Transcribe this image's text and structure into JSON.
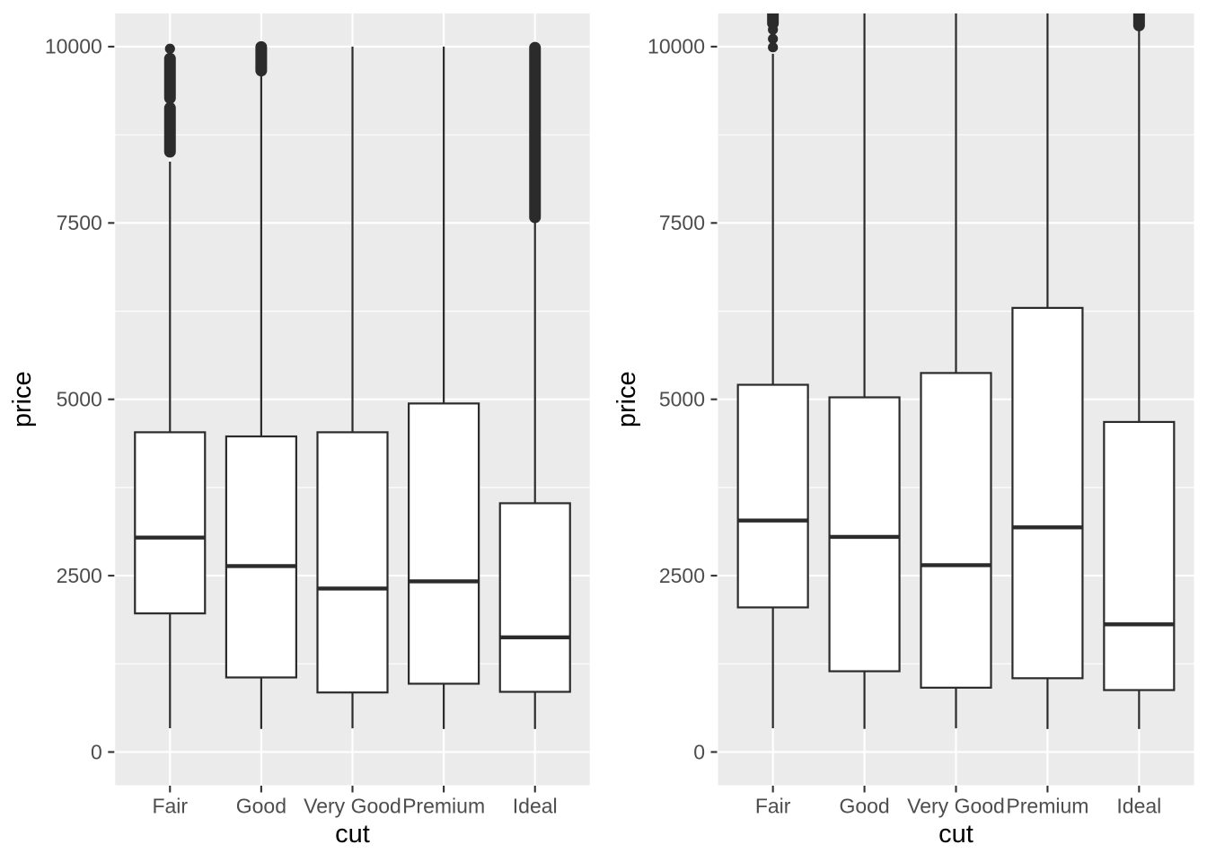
{
  "figure": {
    "kind": "side-by-side ggplot-style boxplots",
    "x_axis_title": "cut",
    "y_axis_title": "price"
  },
  "chart_data": {
    "type": "boxplot",
    "title": "",
    "xlabel": "cut",
    "ylabel": "price",
    "categories": [
      "Fair",
      "Good",
      "Very Good",
      "Premium",
      "Ideal"
    ],
    "y_axis": {
      "breaks": [
        0,
        2500,
        5000,
        7500,
        10000
      ],
      "tick_labels": [
        "0",
        "2500",
        "5000",
        "7500",
        "10000"
      ],
      "minor_breaks": [
        1250,
        3750,
        6250,
        8750
      ],
      "view_range": [
        -471,
        10470
      ]
    },
    "legend": "none",
    "grid": "major+minor white on grey panel",
    "panels": [
      {
        "name": "left-panel",
        "boxes": [
          {
            "category": "Fair",
            "lower": 337,
            "q1": 1965,
            "median": 3040,
            "q3": 4533,
            "upper": 8370,
            "outlier_dots": [
              9970
            ],
            "outlier_blobs": [
              [
                8510,
                9130
              ],
              [
                9270,
                9830
              ]
            ]
          },
          {
            "category": "Good",
            "lower": 327,
            "q1": 1057,
            "median": 2636,
            "q3": 4474,
            "upper": 9597,
            "outlier_dots": [],
            "outlier_blobs": [
              [
                9660,
                9995
              ]
            ]
          },
          {
            "category": "Very Good",
            "lower": 336,
            "q1": 844,
            "median": 2318,
            "q3": 4533,
            "upper": 10000,
            "outlier_dots": [],
            "outlier_blobs": []
          },
          {
            "category": "Premium",
            "lower": 326,
            "q1": 968,
            "median": 2419,
            "q3": 4941,
            "upper": 10000,
            "outlier_dots": [],
            "outlier_blobs": []
          },
          {
            "category": "Ideal",
            "lower": 326,
            "q1": 853,
            "median": 1626,
            "q3": 3527,
            "upper": 7535,
            "outlier_dots": [],
            "outlier_blobs": [
              [
                7580,
                9985
              ]
            ]
          }
        ]
      },
      {
        "name": "right-panel",
        "boxes": [
          {
            "category": "Fair",
            "lower": 337,
            "q1": 2050,
            "median": 3282,
            "q3": 5206,
            "upper": 9899,
            "outlier_dots": [
              9990,
              10110,
              10240
            ],
            "outlier_blobs": [
              [
                10330,
                10620
              ]
            ]
          },
          {
            "category": "Good",
            "lower": 327,
            "q1": 1145,
            "median": 3050,
            "q3": 5028,
            "upper": 10900,
            "outlier_dots": [],
            "outlier_blobs": []
          },
          {
            "category": "Very Good",
            "lower": 336,
            "q1": 912,
            "median": 2648,
            "q3": 5373,
            "upper": 10900,
            "outlier_dots": [],
            "outlier_blobs": []
          },
          {
            "category": "Premium",
            "lower": 326,
            "q1": 1046,
            "median": 3185,
            "q3": 6296,
            "upper": 10900,
            "outlier_dots": [],
            "outlier_blobs": []
          },
          {
            "category": "Ideal",
            "lower": 326,
            "q1": 878,
            "median": 1810,
            "q3": 4679,
            "upper": 10379,
            "outlier_dots": [],
            "outlier_blobs": [
              [
                10300,
                10620
              ]
            ]
          }
        ]
      }
    ],
    "style": {
      "panel_bg": "#EBEBEB",
      "grid_color": "#FFFFFF",
      "box_stroke": "#2B2B2B",
      "box_fill": "#FFFFFF",
      "tick_text_color": "#4D4D4D",
      "axis_title_color": "#000000"
    }
  }
}
